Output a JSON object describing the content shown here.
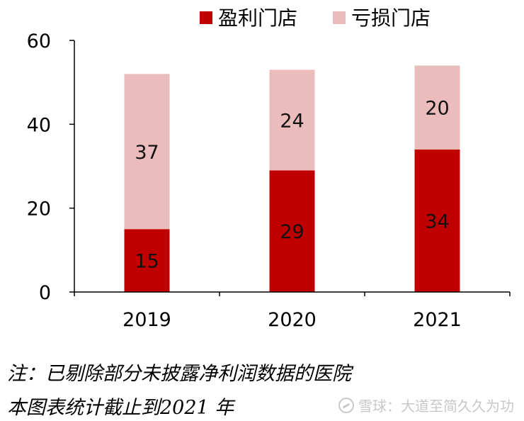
{
  "chart_data": {
    "type": "bar",
    "stacked": true,
    "categories": [
      "2019",
      "2020",
      "2021"
    ],
    "series": [
      {
        "name": "盈利门店",
        "values": [
          15,
          29,
          34
        ],
        "color": "#c00000"
      },
      {
        "name": "亏损门店",
        "values": [
          37,
          24,
          20
        ],
        "color": "#ebbcbc"
      }
    ],
    "ylim": [
      0,
      60
    ],
    "yticks": [
      "0",
      "20",
      "40",
      "60"
    ],
    "legend_position": "top",
    "grid": false
  },
  "note": {
    "line1": "注：已剔除部分未披露净利润数据的医院",
    "line2": "本图表统计截止到2021 年"
  },
  "watermark": "雪球：大道至简久久为功"
}
